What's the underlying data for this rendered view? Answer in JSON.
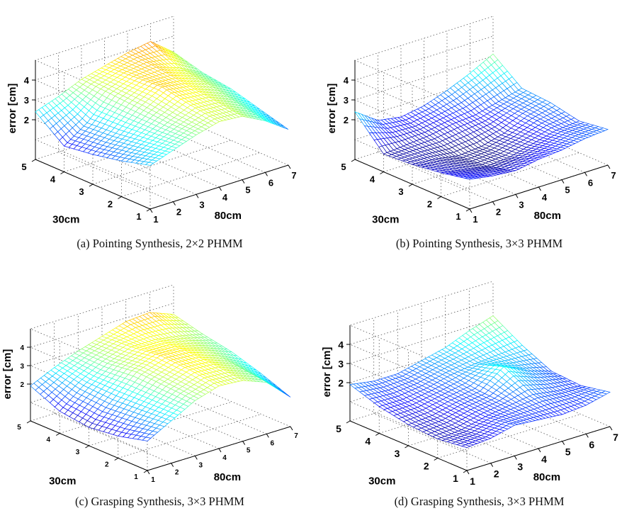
{
  "chart_data": [
    {
      "type": "surface",
      "caption": "(a)  Pointing Synthesis, 2×2 PHMM",
      "zlabel": "error [cm]",
      "x_title": "80cm",
      "y_title": "30cm",
      "x_ticks": [
        "1",
        "2",
        "3",
        "4",
        "5",
        "6",
        "7"
      ],
      "y_ticks": [
        "1",
        "2",
        "3",
        "4",
        "5"
      ],
      "z_ticks": [
        "2",
        "3",
        "4"
      ],
      "x_range": [
        1,
        7
      ],
      "y_range": [
        1,
        5
      ],
      "z_range": [
        0,
        5
      ],
      "colormap": "jet",
      "z": [
        [
          2.2,
          2.6,
          3.0,
          3.3,
          3.2,
          2.6,
          1.8
        ],
        [
          1.8,
          2.4,
          3.0,
          3.5,
          3.4,
          2.9,
          2.2
        ],
        [
          1.5,
          2.2,
          3.1,
          3.8,
          3.6,
          3.2,
          2.6
        ],
        [
          1.3,
          2.1,
          3.2,
          3.7,
          3.8,
          3.4,
          2.8
        ],
        [
          2.4,
          2.8,
          3.3,
          3.6,
          3.9,
          4.1,
          3.2
        ]
      ]
    },
    {
      "type": "surface",
      "caption": "(b)  Pointing Synthesis, 3×3 PHMM",
      "zlabel": "error [cm]",
      "x_title": "80cm",
      "y_title": "30cm",
      "x_ticks": [
        "1",
        "2",
        "3",
        "4",
        "5",
        "6",
        "7"
      ],
      "y_ticks": [
        "1",
        "2",
        "3",
        "4",
        "5"
      ],
      "z_ticks": [
        "2",
        "3",
        "4"
      ],
      "x_range": [
        1,
        7
      ],
      "y_range": [
        1,
        5
      ],
      "z_range": [
        0,
        5
      ],
      "colormap": "jet",
      "z": [
        [
          1.5,
          1.3,
          1.2,
          1.4,
          1.5,
          1.7,
          1.8
        ],
        [
          1.2,
          1.0,
          0.8,
          0.9,
          1.2,
          1.5,
          1.6
        ],
        [
          1.0,
          0.9,
          0.7,
          0.8,
          1.1,
          1.6,
          1.9
        ],
        [
          0.9,
          1.0,
          1.1,
          1.3,
          1.4,
          1.7,
          2.0
        ],
        [
          2.4,
          1.6,
          1.4,
          1.6,
          2.0,
          2.5,
          3.1
        ]
      ]
    },
    {
      "type": "surface",
      "caption": "(c)  Grasping Synthesis, 3×3 PHMM",
      "zlabel": "error [cm]",
      "x_title": "80cm",
      "y_title": "30cm",
      "x_ticks": [
        "1",
        "2",
        "3",
        "4",
        "5",
        "6",
        "7"
      ],
      "y_ticks": [
        "1",
        "2",
        "3",
        "4",
        "5"
      ],
      "z_ticks": [
        "2",
        "3",
        "4"
      ],
      "x_range": [
        1,
        7
      ],
      "y_range": [
        1,
        5
      ],
      "z_range": [
        0,
        5
      ],
      "colormap": "jet",
      "z": [
        [
          1.6,
          2.3,
          3.0,
          3.4,
          3.3,
          2.8,
          1.6
        ],
        [
          1.2,
          2.2,
          3.1,
          3.6,
          3.5,
          3.0,
          2.2
        ],
        [
          1.0,
          2.1,
          3.2,
          3.7,
          3.6,
          3.2,
          2.7
        ],
        [
          1.2,
          2.2,
          3.0,
          3.5,
          3.5,
          3.3,
          3.0
        ],
        [
          1.9,
          2.5,
          3.0,
          3.4,
          3.8,
          3.9,
          3.4
        ]
      ]
    },
    {
      "type": "surface",
      "caption": "(d)  Grasping Synthesis, 3×3 PHMM",
      "zlabel": "error [cm]",
      "x_title": "80cm",
      "y_title": "30cm",
      "x_ticks": [
        "1",
        "2",
        "3",
        "4",
        "5",
        "6",
        "7"
      ],
      "y_ticks": [
        "1",
        "2",
        "3",
        "4",
        "5"
      ],
      "z_ticks": [
        "2",
        "3",
        "4"
      ],
      "x_range": [
        1,
        7
      ],
      "y_range": [
        1,
        5
      ],
      "z_range": [
        0,
        5
      ],
      "colormap": "jet",
      "z": [
        [
          1.2,
          1.3,
          1.6,
          1.5,
          1.4,
          1.5,
          1.8
        ],
        [
          1.0,
          1.1,
          1.4,
          1.6,
          1.8,
          1.6,
          1.5
        ],
        [
          1.1,
          1.2,
          1.5,
          1.7,
          2.6,
          2.0,
          1.6
        ],
        [
          1.4,
          1.4,
          1.6,
          1.9,
          2.1,
          2.2,
          2.3
        ],
        [
          1.9,
          1.7,
          1.7,
          2.0,
          2.3,
          2.8,
          3.2
        ]
      ]
    }
  ]
}
